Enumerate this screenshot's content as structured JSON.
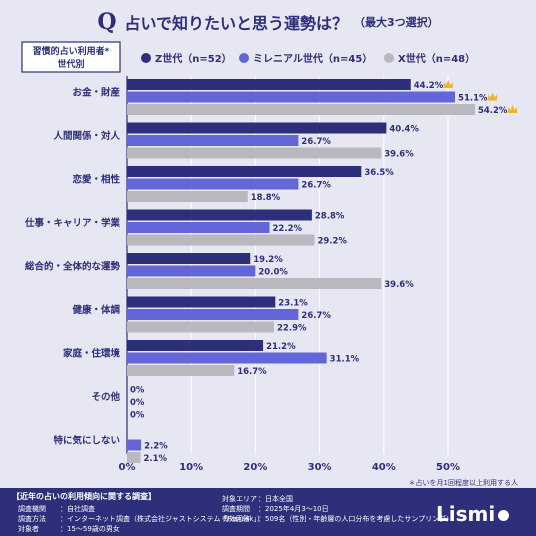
{
  "title": {
    "badge": "Q",
    "main": "占いで知りたいと思う運勢は？",
    "sub": "（最大3つ選択）"
  },
  "legend_box": {
    "line1": "習慣的占い利用者*",
    "line2": "世代別"
  },
  "footnote": "＊占いを月1回程度以上利用する人",
  "colors": {
    "gen_z": "#2d2f7a",
    "millennial": "#6466d8",
    "gen_x": "#b8b8be",
    "background": "#e7e7f4",
    "grid": "#ffffff",
    "crown": "#f2b51b"
  },
  "chart_data": {
    "type": "bar",
    "orientation": "horizontal",
    "categories": [
      "お金・財産",
      "人間関係・対人",
      "恋愛・相性",
      "仕事・キャリア・学業",
      "総合的・全体的な運勢",
      "健康・体調",
      "家庭・住環境",
      "その他",
      "特に気にしない"
    ],
    "series": [
      {
        "name": "Z世代（n=52）",
        "values": [
          44.2,
          40.4,
          36.5,
          28.8,
          19.2,
          23.1,
          21.2,
          0,
          0
        ]
      },
      {
        "name": "ミレニアル世代（n=45）",
        "values": [
          51.1,
          26.7,
          26.7,
          22.2,
          20.0,
          26.7,
          31.1,
          0,
          2.2
        ]
      },
      {
        "name": "X世代（n=48）",
        "values": [
          54.2,
          39.6,
          18.8,
          29.2,
          39.6,
          22.9,
          16.7,
          0,
          2.1
        ]
      }
    ],
    "value_labels": [
      [
        "44.2%",
        "40.4%",
        "36.5%",
        "28.8%",
        "19.2%",
        "23.1%",
        "21.2%",
        "0%",
        ""
      ],
      [
        "51.1%",
        "26.7%",
        "26.7%",
        "22.2%",
        "20.0%",
        "26.7%",
        "31.1%",
        "0%",
        "2.2%"
      ],
      [
        "54.2%",
        "39.6%",
        "18.8%",
        "29.2%",
        "39.6%",
        "22.9%",
        "16.7%",
        "0%",
        "2.1%"
      ]
    ],
    "crown_marks": [
      {
        "series": 0,
        "category": 0
      },
      {
        "series": 1,
        "category": 0
      },
      {
        "series": 2,
        "category": 0
      }
    ],
    "x_ticks": [
      0,
      10,
      20,
      30,
      40,
      50
    ],
    "x_tick_labels": [
      "0%",
      "10%",
      "20%",
      "30%",
      "40%",
      "50%"
    ],
    "xlim": [
      0,
      55
    ],
    "grid": true,
    "legend_position": "top"
  },
  "footer": {
    "survey_title": "【近年の占いの利用傾向に関する調査】",
    "rows_left": [
      {
        "label": "調査機関",
        "value": "：自社調査"
      },
      {
        "label": "調査方法",
        "value": "：インターネット調査（株式会社ジャストシステム「Fastask」）"
      },
      {
        "label": "対象者",
        "value": "：15～59歳の男女"
      }
    ],
    "rows_right": [
      {
        "label": "対象エリア",
        "value": "：日本全国"
      },
      {
        "label": "調査期間",
        "value": "：2025年4月3～10日"
      },
      {
        "label": "有効回答",
        "value": "：509名（性別・年齢層の人口分布を考慮したサンプリング）"
      }
    ],
    "logo": "Lismi"
  }
}
